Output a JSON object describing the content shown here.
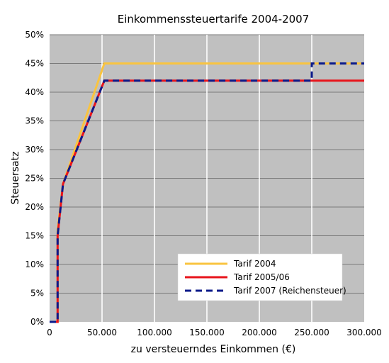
{
  "chart_data": {
    "type": "line",
    "title": "Einkommenssteuertarife 2004-2007",
    "xlabel": "zu versteuerndes Einkommen (€)",
    "ylabel": "Steuersatz",
    "xlim": [
      0,
      300000
    ],
    "ylim": [
      0,
      50
    ],
    "grid": true,
    "legend_position": "bottom-right",
    "x_ticks": [
      {
        "value": 0,
        "label": "0"
      },
      {
        "value": 50000,
        "label": "50.000"
      },
      {
        "value": 100000,
        "label": "100.000"
      },
      {
        "value": 150000,
        "label": "150.000"
      },
      {
        "value": 200000,
        "label": "200.000"
      },
      {
        "value": 250000,
        "label": "250.000"
      },
      {
        "value": 300000,
        "label": "300.000"
      }
    ],
    "y_ticks": [
      {
        "value": 0,
        "label": "0%"
      },
      {
        "value": 5,
        "label": "5%"
      },
      {
        "value": 10,
        "label": "10%"
      },
      {
        "value": 15,
        "label": "15%"
      },
      {
        "value": 20,
        "label": "20%"
      },
      {
        "value": 25,
        "label": "25%"
      },
      {
        "value": 30,
        "label": "30%"
      },
      {
        "value": 35,
        "label": "35%"
      },
      {
        "value": 40,
        "label": "40%"
      },
      {
        "value": 45,
        "label": "45%"
      },
      {
        "value": 50,
        "label": "50%"
      }
    ],
    "series": [
      {
        "name": "Tarif 2004",
        "color": "#f9c440",
        "dash": "solid",
        "points": [
          [
            0,
            0
          ],
          [
            7664,
            0
          ],
          [
            7664,
            16
          ],
          [
            12739,
            24
          ],
          [
            52151,
            45
          ],
          [
            300000,
            45
          ]
        ]
      },
      {
        "name": "Tarif 2005/06",
        "color": "#e8141b",
        "dash": "solid",
        "points": [
          [
            0,
            0
          ],
          [
            7664,
            0
          ],
          [
            7664,
            15
          ],
          [
            12739,
            24
          ],
          [
            52151,
            42
          ],
          [
            300000,
            42
          ]
        ]
      },
      {
        "name": "Tarif 2007 (Reichensteuer)",
        "color": "#0b1a8a",
        "dash": "dashed",
        "points": [
          [
            0,
            0
          ],
          [
            7664,
            0
          ],
          [
            7664,
            15
          ],
          [
            12739,
            24
          ],
          [
            52151,
            42
          ],
          [
            250000,
            42
          ],
          [
            250000,
            45
          ],
          [
            300000,
            45
          ]
        ]
      }
    ]
  }
}
